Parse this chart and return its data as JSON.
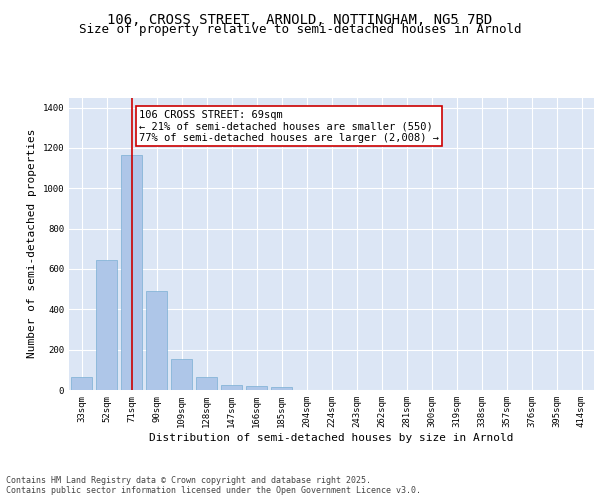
{
  "title_line1": "106, CROSS STREET, ARNOLD, NOTTINGHAM, NG5 7BD",
  "title_line2": "Size of property relative to semi-detached houses in Arnold",
  "xlabel": "Distribution of semi-detached houses by size in Arnold",
  "ylabel": "Number of semi-detached properties",
  "categories": [
    "33sqm",
    "52sqm",
    "71sqm",
    "90sqm",
    "109sqm",
    "128sqm",
    "147sqm",
    "166sqm",
    "185sqm",
    "204sqm",
    "224sqm",
    "243sqm",
    "262sqm",
    "281sqm",
    "300sqm",
    "319sqm",
    "338sqm",
    "357sqm",
    "376sqm",
    "395sqm",
    "414sqm"
  ],
  "values": [
    65,
    645,
    1165,
    490,
    155,
    62,
    25,
    18,
    14,
    0,
    0,
    0,
    0,
    0,
    0,
    0,
    0,
    0,
    0,
    0,
    0
  ],
  "bar_color": "#aec6e8",
  "bar_edge_color": "#7aafd4",
  "property_bar_index": 2,
  "annotation_text": "106 CROSS STREET: 69sqm\n← 21% of semi-detached houses are smaller (550)\n77% of semi-detached houses are larger (2,008) →",
  "vline_color": "#cc0000",
  "annotation_box_color": "#cc0000",
  "ylim": [
    0,
    1450
  ],
  "yticks": [
    0,
    200,
    400,
    600,
    800,
    1000,
    1200,
    1400
  ],
  "bg_color": "#dce6f5",
  "grid_color": "#ffffff",
  "fig_bg_color": "#ffffff",
  "footer_text": "Contains HM Land Registry data © Crown copyright and database right 2025.\nContains public sector information licensed under the Open Government Licence v3.0.",
  "title_fontsize": 10,
  "subtitle_fontsize": 9,
  "axis_label_fontsize": 8,
  "tick_fontsize": 6.5,
  "annotation_fontsize": 7.5,
  "footer_fontsize": 6
}
